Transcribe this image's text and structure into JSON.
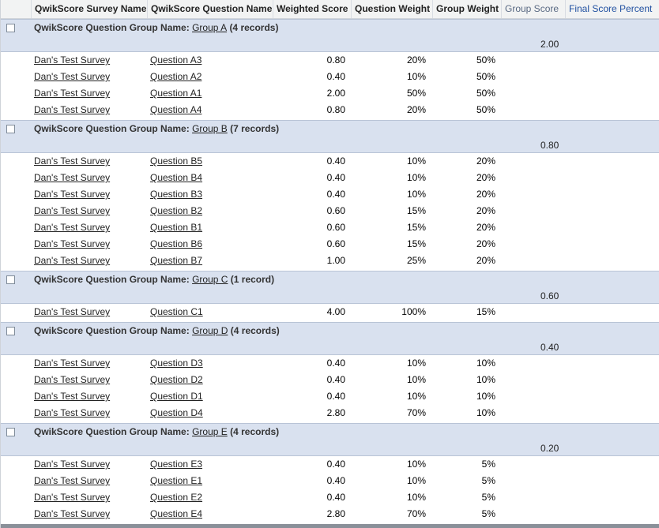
{
  "columns": {
    "survey_name": "QwikScore Survey Name",
    "question_name": "QwikScore Question Name",
    "weighted_score": "Weighted Score",
    "question_weight": "Question Weight",
    "group_weight": "Group Weight",
    "group_score": "Group Score",
    "final_score_percent": "Final Score Percent"
  },
  "group_label_prefix": "QwikScore Question Group Name:",
  "colors": {
    "header_bg": "#f2f3f3",
    "group_bg": "#d9e1ef",
    "header_blue": "#1f4fa0"
  },
  "groups": [
    {
      "name": "Group A",
      "count": "(4 records)",
      "score": "2.00",
      "rows": [
        {
          "survey": "Dan's Test Survey",
          "question": "Question A3",
          "weighted_score": "0.80",
          "question_weight": "20%",
          "group_weight": "50%"
        },
        {
          "survey": "Dan's Test Survey",
          "question": "Question A2",
          "weighted_score": "0.40",
          "question_weight": "10%",
          "group_weight": "50%"
        },
        {
          "survey": "Dan's Test Survey",
          "question": "Question A1",
          "weighted_score": "2.00",
          "question_weight": "50%",
          "group_weight": "50%"
        },
        {
          "survey": "Dan's Test Survey",
          "question": "Question A4",
          "weighted_score": "0.80",
          "question_weight": "20%",
          "group_weight": "50%"
        }
      ]
    },
    {
      "name": "Group B",
      "count": "(7 records)",
      "score": "0.80",
      "rows": [
        {
          "survey": "Dan's Test Survey",
          "question": "Question B5",
          "weighted_score": "0.40",
          "question_weight": "10%",
          "group_weight": "20%"
        },
        {
          "survey": "Dan's Test Survey",
          "question": "Question B4",
          "weighted_score": "0.40",
          "question_weight": "10%",
          "group_weight": "20%"
        },
        {
          "survey": "Dan's Test Survey",
          "question": "Question B3",
          "weighted_score": "0.40",
          "question_weight": "10%",
          "group_weight": "20%"
        },
        {
          "survey": "Dan's Test Survey",
          "question": "Question B2",
          "weighted_score": "0.60",
          "question_weight": "15%",
          "group_weight": "20%"
        },
        {
          "survey": "Dan's Test Survey",
          "question": "Question B1",
          "weighted_score": "0.60",
          "question_weight": "15%",
          "group_weight": "20%"
        },
        {
          "survey": "Dan's Test Survey",
          "question": "Question B6",
          "weighted_score": "0.60",
          "question_weight": "15%",
          "group_weight": "20%"
        },
        {
          "survey": "Dan's Test Survey",
          "question": "Question B7",
          "weighted_score": "1.00",
          "question_weight": "25%",
          "group_weight": "20%"
        }
      ]
    },
    {
      "name": "Group C",
      "count": "(1 record)",
      "score": "0.60",
      "rows": [
        {
          "survey": "Dan's Test Survey",
          "question": "Question C1",
          "weighted_score": "4.00",
          "question_weight": "100%",
          "group_weight": "15%"
        }
      ]
    },
    {
      "name": "Group D",
      "count": "(4 records)",
      "score": "0.40",
      "rows": [
        {
          "survey": "Dan's Test Survey",
          "question": "Question D3",
          "weighted_score": "0.40",
          "question_weight": "10%",
          "group_weight": "10%"
        },
        {
          "survey": "Dan's Test Survey",
          "question": "Question D2",
          "weighted_score": "0.40",
          "question_weight": "10%",
          "group_weight": "10%"
        },
        {
          "survey": "Dan's Test Survey",
          "question": "Question D1",
          "weighted_score": "0.40",
          "question_weight": "10%",
          "group_weight": "10%"
        },
        {
          "survey": "Dan's Test Survey",
          "question": "Question D4",
          "weighted_score": "2.80",
          "question_weight": "70%",
          "group_weight": "10%"
        }
      ]
    },
    {
      "name": "Group E",
      "count": "(4 records)",
      "score": "0.20",
      "rows": [
        {
          "survey": "Dan's Test Survey",
          "question": "Question E3",
          "weighted_score": "0.40",
          "question_weight": "10%",
          "group_weight": "5%"
        },
        {
          "survey": "Dan's Test Survey",
          "question": "Question E1",
          "weighted_score": "0.40",
          "question_weight": "10%",
          "group_weight": "5%"
        },
        {
          "survey": "Dan's Test Survey",
          "question": "Question E2",
          "weighted_score": "0.40",
          "question_weight": "10%",
          "group_weight": "5%"
        },
        {
          "survey": "Dan's Test Survey",
          "question": "Question E4",
          "weighted_score": "2.80",
          "question_weight": "70%",
          "group_weight": "5%"
        }
      ]
    }
  ]
}
